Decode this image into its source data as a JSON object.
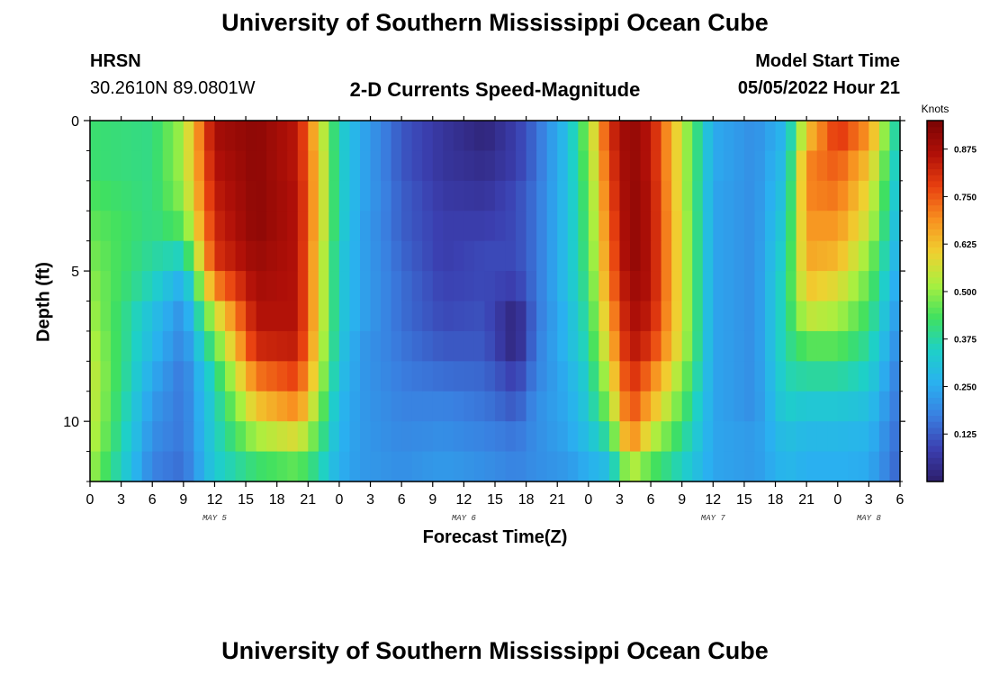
{
  "header": {
    "title": "University of Southern Mississippi Ocean Cube",
    "station": "HRSN",
    "coords": "30.2610N  89.0801W",
    "subtitle": "2-D Currents Speed-Magnitude",
    "model_label": "Model Start Time",
    "model_time": "05/05/2022 Hour 21",
    "footer_title": "University of Southern Mississippi Ocean Cube"
  },
  "colors": {
    "stops": [
      "#2d1e6b",
      "#3b3fb0",
      "#3a7fe0",
      "#2ab0f0",
      "#1ed0c8",
      "#40e060",
      "#a8f040",
      "#f0d030",
      "#f89020",
      "#e84010",
      "#b01008",
      "#7a0404"
    ]
  },
  "chart_data": {
    "type": "heatmap",
    "title": "2-D Currents Speed-Magnitude",
    "xlabel": "Forecast Time(Z)",
    "ylabel": "Depth (ft)",
    "x_ticks": [
      "0",
      "3",
      "6",
      "9",
      "12",
      "15",
      "18",
      "21",
      "0",
      "3",
      "6",
      "9",
      "12",
      "15",
      "18",
      "21",
      "0",
      "3",
      "6",
      "9",
      "12",
      "15",
      "18",
      "21",
      "0",
      "3",
      "6"
    ],
    "x_tick_hours": [
      0,
      3,
      6,
      9,
      12,
      15,
      18,
      21,
      24,
      27,
      30,
      33,
      36,
      39,
      42,
      45,
      48,
      51,
      54,
      57,
      60,
      63,
      66,
      69,
      72,
      75,
      78
    ],
    "date_labels": [
      {
        "text": "MAY 5",
        "hour": 12
      },
      {
        "text": "MAY 6",
        "hour": 36
      },
      {
        "text": "MAY 7",
        "hour": 60
      },
      {
        "text": "MAY 8",
        "hour": 75
      }
    ],
    "x_range_hours": [
      0,
      78
    ],
    "y_ticks": [
      "0",
      "5",
      "10"
    ],
    "y_tick_values": [
      0,
      5,
      10
    ],
    "y_range_ft": [
      0,
      12
    ],
    "colorbar": {
      "label": "Knots",
      "ticks": [
        "0.875",
        "0.750",
        "0.625",
        "0.500",
        "0.375",
        "0.250",
        "0.125"
      ],
      "tick_values": [
        0.875,
        0.75,
        0.625,
        0.5,
        0.375,
        0.25,
        0.125
      ],
      "range": [
        0.0,
        0.95
      ]
    },
    "depth_bins_ft": [
      0.5,
      1.5,
      2.5,
      3.5,
      4.5,
      5.5,
      6.5,
      7.5,
      8.5,
      9.5,
      10.5,
      11.5
    ],
    "time_hours": [
      0,
      6,
      9,
      12,
      16,
      20,
      22,
      24,
      26,
      30,
      34,
      38,
      41,
      43,
      46,
      48,
      50,
      52,
      54,
      57,
      60,
      64,
      67,
      69,
      72,
      75,
      78
    ],
    "speed_knots_by_depth": [
      [
        0.42,
        0.4,
        0.52,
        0.88,
        0.92,
        0.85,
        0.6,
        0.35,
        0.25,
        0.12,
        0.06,
        0.02,
        0.08,
        0.15,
        0.3,
        0.5,
        0.8,
        0.92,
        0.85,
        0.55,
        0.25,
        0.2,
        0.28,
        0.62,
        0.8,
        0.68,
        0.32
      ],
      [
        0.42,
        0.4,
        0.52,
        0.86,
        0.92,
        0.85,
        0.62,
        0.35,
        0.25,
        0.12,
        0.06,
        0.04,
        0.08,
        0.15,
        0.3,
        0.48,
        0.78,
        0.92,
        0.85,
        0.55,
        0.25,
        0.2,
        0.3,
        0.7,
        0.75,
        0.62,
        0.3
      ],
      [
        0.44,
        0.4,
        0.5,
        0.84,
        0.92,
        0.86,
        0.62,
        0.35,
        0.25,
        0.13,
        0.07,
        0.06,
        0.1,
        0.16,
        0.3,
        0.46,
        0.76,
        0.92,
        0.86,
        0.55,
        0.24,
        0.2,
        0.32,
        0.7,
        0.72,
        0.58,
        0.28
      ],
      [
        0.46,
        0.4,
        0.45,
        0.82,
        0.92,
        0.86,
        0.62,
        0.35,
        0.24,
        0.13,
        0.08,
        0.08,
        0.1,
        0.16,
        0.3,
        0.45,
        0.74,
        0.92,
        0.86,
        0.56,
        0.24,
        0.2,
        0.34,
        0.68,
        0.68,
        0.55,
        0.26
      ],
      [
        0.48,
        0.38,
        0.35,
        0.8,
        0.9,
        0.86,
        0.6,
        0.33,
        0.24,
        0.14,
        0.08,
        0.1,
        0.1,
        0.16,
        0.3,
        0.44,
        0.72,
        0.92,
        0.86,
        0.56,
        0.24,
        0.2,
        0.36,
        0.66,
        0.64,
        0.5,
        0.24
      ],
      [
        0.5,
        0.35,
        0.25,
        0.7,
        0.88,
        0.86,
        0.6,
        0.33,
        0.24,
        0.15,
        0.09,
        0.1,
        0.08,
        0.16,
        0.3,
        0.42,
        0.7,
        0.9,
        0.86,
        0.56,
        0.24,
        0.2,
        0.38,
        0.62,
        0.58,
        0.46,
        0.22
      ],
      [
        0.52,
        0.3,
        0.2,
        0.55,
        0.86,
        0.86,
        0.6,
        0.33,
        0.24,
        0.15,
        0.1,
        0.11,
        0.02,
        0.16,
        0.28,
        0.4,
        0.66,
        0.88,
        0.84,
        0.56,
        0.24,
        0.2,
        0.38,
        0.55,
        0.52,
        0.42,
        0.2
      ],
      [
        0.54,
        0.28,
        0.18,
        0.45,
        0.82,
        0.84,
        0.58,
        0.32,
        0.22,
        0.16,
        0.12,
        0.12,
        0.02,
        0.17,
        0.28,
        0.38,
        0.62,
        0.86,
        0.8,
        0.55,
        0.24,
        0.2,
        0.38,
        0.45,
        0.45,
        0.38,
        0.18
      ],
      [
        0.56,
        0.25,
        0.16,
        0.38,
        0.72,
        0.78,
        0.55,
        0.3,
        0.22,
        0.17,
        0.15,
        0.14,
        0.08,
        0.18,
        0.26,
        0.35,
        0.56,
        0.82,
        0.72,
        0.5,
        0.24,
        0.2,
        0.36,
        0.38,
        0.38,
        0.34,
        0.16
      ],
      [
        0.56,
        0.22,
        0.16,
        0.35,
        0.62,
        0.7,
        0.5,
        0.28,
        0.22,
        0.18,
        0.18,
        0.16,
        0.12,
        0.2,
        0.25,
        0.33,
        0.5,
        0.78,
        0.65,
        0.45,
        0.24,
        0.2,
        0.34,
        0.32,
        0.32,
        0.3,
        0.15
      ],
      [
        0.55,
        0.2,
        0.16,
        0.34,
        0.52,
        0.58,
        0.44,
        0.27,
        0.22,
        0.19,
        0.2,
        0.18,
        0.16,
        0.2,
        0.24,
        0.3,
        0.4,
        0.72,
        0.55,
        0.4,
        0.24,
        0.22,
        0.3,
        0.28,
        0.28,
        0.27,
        0.14
      ],
      [
        0.52,
        0.18,
        0.15,
        0.33,
        0.42,
        0.46,
        0.38,
        0.26,
        0.22,
        0.2,
        0.22,
        0.2,
        0.18,
        0.2,
        0.22,
        0.26,
        0.3,
        0.55,
        0.45,
        0.35,
        0.24,
        0.22,
        0.28,
        0.26,
        0.26,
        0.25,
        0.13
      ]
    ]
  }
}
